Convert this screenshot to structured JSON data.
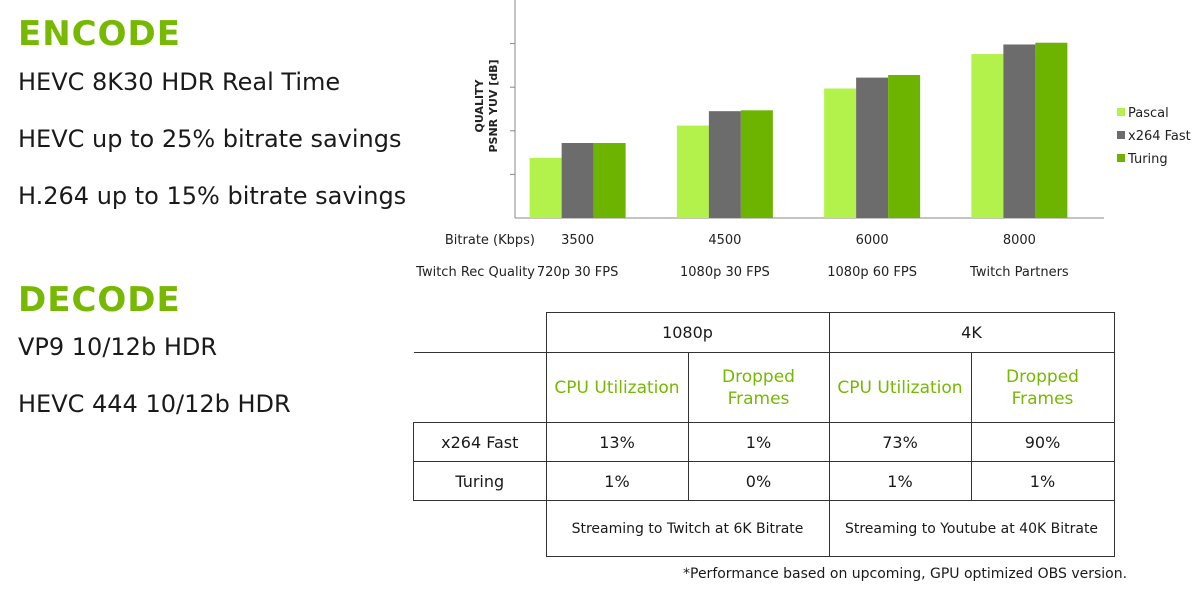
{
  "encode": {
    "heading": "ENCODE",
    "lines": [
      "HEVC 8K30 HDR Real Time",
      "HEVC up to 25% bitrate savings",
      "H.264 up to 15% bitrate savings"
    ]
  },
  "decode": {
    "heading": "DECODE",
    "lines": [
      "VP9 10/12b HDR",
      "HEVC 444 10/12b HDR"
    ]
  },
  "chart_data": {
    "type": "bar",
    "ylabel_line1": "QUALITY",
    "ylabel_line2": "PSNR YUV [dB]",
    "row_labels": [
      "Bitrate (Kbps)",
      "Twitch Rec Quality"
    ],
    "categories": [
      "3500",
      "4500",
      "6000",
      "8000"
    ],
    "secondary_categories": [
      "720p 30 FPS",
      "1080p 30 FPS",
      "1080p 60 FPS",
      "Twitch Partners"
    ],
    "y_ticks": 5,
    "ylim": [
      0,
      5
    ],
    "grid": false,
    "legend_position": "right",
    "series": [
      {
        "name": "Pascal",
        "color": "#b2f24a",
        "values": [
          1.38,
          2.12,
          2.97,
          3.76
        ]
      },
      {
        "name": "x264 Fast",
        "color": "#6c6c6c",
        "values": [
          1.72,
          2.45,
          3.22,
          3.98
        ]
      },
      {
        "name": "Turing",
        "color": "#6db400",
        "values": [
          1.72,
          2.47,
          3.28,
          4.02
        ]
      }
    ]
  },
  "table": {
    "groups": [
      "1080p",
      "4K"
    ],
    "metrics": [
      "CPU Utilization",
      "Dropped Frames",
      "CPU Utilization",
      "Dropped Frames"
    ],
    "rows": [
      {
        "label": "x264 Fast",
        "cells": [
          "13%",
          "1%",
          "73%",
          "90%"
        ]
      },
      {
        "label": "Turing",
        "cells": [
          "1%",
          "0%",
          "1%",
          "1%"
        ]
      }
    ],
    "streaming": [
      "Streaming to Twitch at 6K Bitrate",
      "Streaming to Youtube at 40K Bitrate"
    ]
  },
  "footnote": "*Performance based on upcoming, GPU optimized OBS version."
}
